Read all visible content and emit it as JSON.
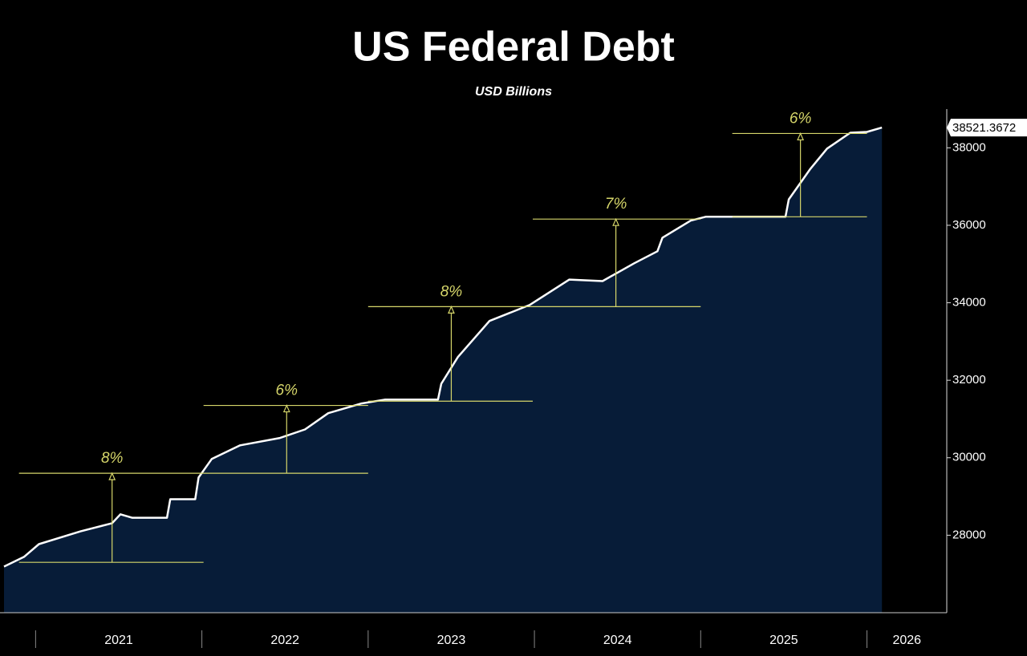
{
  "chart_data": {
    "type": "area",
    "title": "US Federal Debt",
    "subtitle": "USD Billions",
    "x": [
      2020.81,
      2020.93,
      2021.02,
      2021.27,
      2021.46,
      2021.51,
      2021.58,
      2021.79,
      2021.81,
      2021.96,
      2021.98,
      2022.06,
      2022.23,
      2022.47,
      2022.62,
      2022.76,
      2022.96,
      2023.1,
      2023.42,
      2023.44,
      2023.54,
      2023.73,
      2023.97,
      2024.21,
      2024.41,
      2024.6,
      2024.74,
      2024.77,
      2024.94,
      2025.03,
      2025.51,
      2025.53,
      2025.66,
      2025.76,
      2025.9,
      2026.0,
      2026.09
    ],
    "values": [
      27190,
      27440,
      27770,
      28100,
      28310,
      28540,
      28450,
      28450,
      28930,
      28930,
      29490,
      29970,
      30320,
      30510,
      30730,
      31150,
      31400,
      31500,
      31500,
      31910,
      32600,
      33530,
      33940,
      34600,
      34560,
      35020,
      35330,
      35680,
      36120,
      36220,
      36220,
      36670,
      37460,
      37980,
      38390,
      38410,
      38521.3672
    ],
    "color": "#ffffff",
    "fill": "#071c38",
    "background": "#000000",
    "xlim": [
      2020.81,
      2026.48
    ],
    "xticks": [
      2021,
      2022,
      2023,
      2024,
      2025,
      2026
    ],
    "ylim": [
      26000,
      39000
    ],
    "yticks": [
      28000,
      30000,
      32000,
      34000,
      36000,
      38000
    ],
    "annotation_color": "#d6d66a",
    "annotations": [
      {
        "label": "8%",
        "x": 2021.46,
        "x_range": [
          2020.9,
          2022.01
        ],
        "from": 27300,
        "to": 29600
      },
      {
        "label": "6%",
        "x": 2022.51,
        "x_range": [
          2022.01,
          2023.0
        ],
        "from": 29600,
        "to": 31350
      },
      {
        "label": "8%",
        "x": 2023.5,
        "x_range": [
          2023.0,
          2023.99
        ],
        "from": 31460,
        "to": 33900
      },
      {
        "label": "7%",
        "x": 2024.49,
        "x_range": [
          2023.99,
          2025.0
        ],
        "from": 33900,
        "to": 36160
      },
      {
        "label": "6%",
        "x": 2025.6,
        "x_range": [
          2025.19,
          2026.0
        ],
        "from": 36220,
        "to": 38370
      }
    ]
  }
}
